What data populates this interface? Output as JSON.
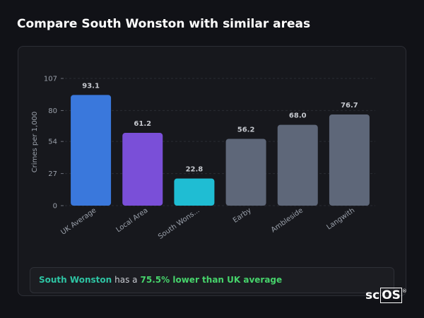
{
  "title": "Compare South Wonston with similar areas",
  "chart_data": {
    "type": "bar",
    "y_label": "Crimes per 1,000",
    "categories": [
      "UK Average",
      "Local Area",
      "South Wons...",
      "Earby",
      "Ambleside",
      "Langwith"
    ],
    "values": [
      93.1,
      61.2,
      22.8,
      56.2,
      68.0,
      76.7
    ],
    "value_labels": [
      "93.1",
      "61.2",
      "22.8",
      "56.2",
      "68.0",
      "76.7"
    ],
    "colors": [
      "#3a78dc",
      "#7a4fd8",
      "#1fbdd3",
      "#5e6779",
      "#5e6779",
      "#5e6779"
    ],
    "ylim": [
      0,
      107
    ],
    "yticks": [
      0,
      27,
      54,
      80,
      107
    ],
    "grid": true
  },
  "footer": {
    "place": "South Wonston",
    "middle": "has a",
    "highlight": "75.5% lower than UK average"
  },
  "logo": {
    "prefix": "sc",
    "boxed": "OS",
    "mark": "®"
  }
}
